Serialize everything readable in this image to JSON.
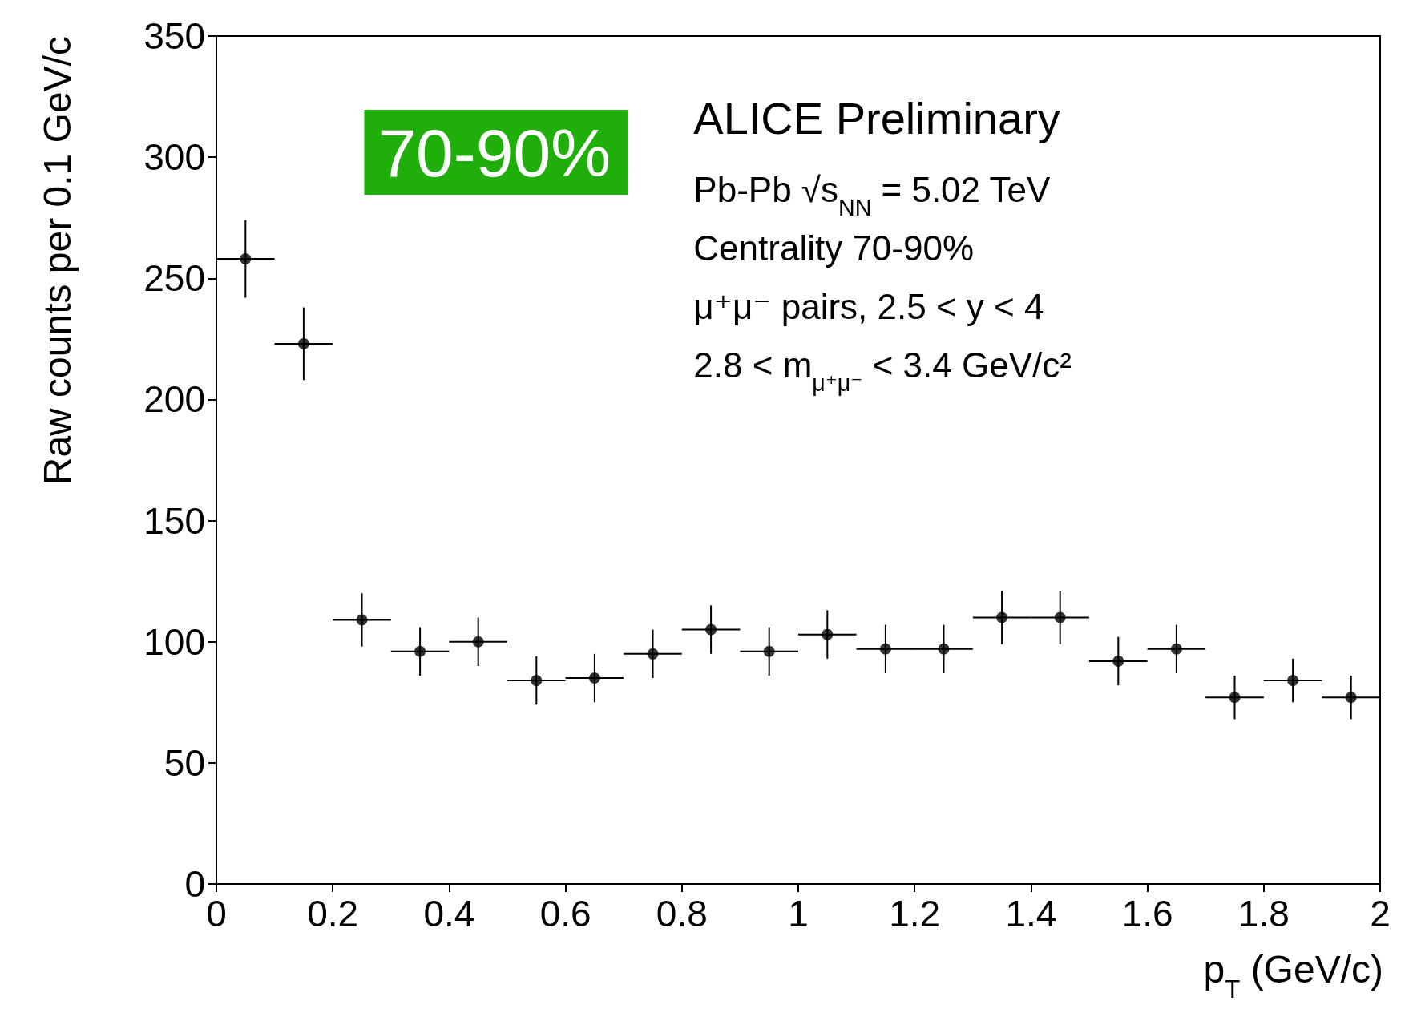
{
  "chart_data": {
    "type": "scatter",
    "xlabel": "p$_{T}$ (GeV/c)",
    "ylabel": "Raw counts per 0.1 GeV/c",
    "x": [
      0.05,
      0.15,
      0.25,
      0.35,
      0.45,
      0.55,
      0.65,
      0.75,
      0.85,
      0.95,
      1.05,
      1.15,
      1.25,
      1.35,
      1.45,
      1.55,
      1.65,
      1.75,
      1.85,
      1.95
    ],
    "values": [
      258,
      223,
      109,
      96,
      100,
      84,
      85,
      95,
      105,
      96,
      103,
      97,
      97,
      110,
      110,
      92,
      97,
      77,
      84,
      77
    ],
    "errors": [
      16,
      15,
      11,
      10,
      10,
      10,
      10,
      10,
      10,
      10,
      10,
      10,
      10,
      11,
      11,
      10,
      10,
      9,
      9,
      9
    ],
    "xerrors": [
      0.05,
      0.05,
      0.05,
      0.05,
      0.05,
      0.05,
      0.05,
      0.05,
      0.05,
      0.05,
      0.05,
      0.05,
      0.05,
      0.05,
      0.05,
      0.05,
      0.05,
      0.05,
      0.05,
      0.05
    ],
    "color": "#000000",
    "marker": "circle",
    "xlim": [
      0,
      2
    ],
    "xticks": [
      0,
      0.2,
      0.4,
      0.6,
      0.8,
      1,
      1.2,
      1.4,
      1.6,
      1.8,
      2
    ],
    "ylim": [
      0,
      350
    ],
    "yticks": [
      0,
      50,
      100,
      150,
      200,
      250,
      300,
      350
    ],
    "grid": false,
    "annotations": [
      "70-90%",
      "ALICE Preliminary",
      "Pb-Pb √s$_{NN}$ = 5.02 TeV",
      "Centrality 70-90%",
      "μ⁺μ⁻ pairs, 2.5 < y < 4",
      "2.8 < m$_{μ⁺μ⁻}$ < 3.4 GeV/c²"
    ]
  }
}
